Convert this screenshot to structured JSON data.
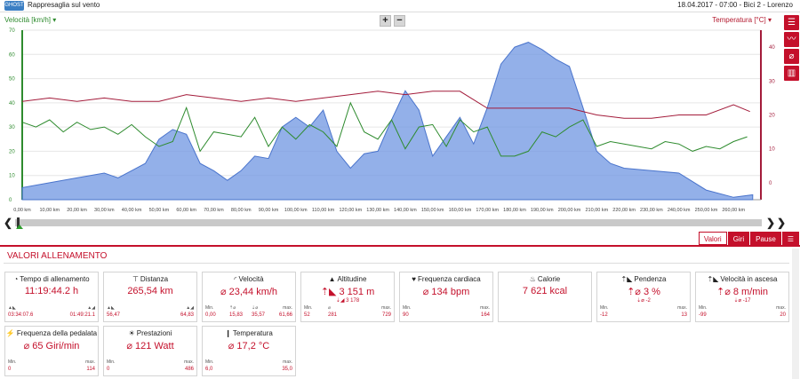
{
  "header": {
    "logo_text": "GHOST",
    "title": "Rappresaglia sul vento",
    "session": "18.04.2017  -  07:00  -  Bici 2  -  Lorenzo"
  },
  "chart": {
    "left_axis_label": "Velocità [km/h]",
    "right_axis_label": "Temperatura [°C]",
    "zoom_in": "+",
    "zoom_out": "−"
  },
  "chart_data": {
    "type": "line",
    "x_label": "km",
    "x_ticks": [
      "0,00 km",
      "10,00 km",
      "20,00 km",
      "30,00 km",
      "40,00 km",
      "50,00 km",
      "60,00 km",
      "70,00 km",
      "80,00 km",
      "90,00 km",
      "100,00 km",
      "110,00 km",
      "120,00 km",
      "130,00 km",
      "140,00 km",
      "150,00 km",
      "160,00 km",
      "170,00 km",
      "180,00 km",
      "190,00 km",
      "200,00 km",
      "210,00 km",
      "220,00 km",
      "230,00 km",
      "240,00 km",
      "250,00 km",
      "260,00 km"
    ],
    "x_range": [
      0,
      270
    ],
    "y_left_ticks": [
      0,
      10,
      20,
      30,
      40,
      50,
      60,
      70
    ],
    "y_left_range": [
      0,
      70
    ],
    "y_right_ticks": [
      0,
      10,
      20,
      30,
      40
    ],
    "y_right_range": [
      -5,
      45
    ],
    "series": [
      {
        "name": "Altitudine",
        "color": "#6f96e2",
        "axis": "left",
        "x": [
          0,
          10,
          20,
          30,
          35,
          40,
          45,
          50,
          55,
          60,
          65,
          70,
          75,
          80,
          85,
          90,
          95,
          100,
          105,
          110,
          115,
          120,
          125,
          130,
          135,
          140,
          145,
          150,
          155,
          160,
          165,
          170,
          175,
          180,
          185,
          190,
          195,
          200,
          205,
          210,
          215,
          220,
          230,
          240,
          250,
          260,
          267
        ],
        "values": [
          5,
          7,
          9,
          11,
          9,
          12,
          15,
          25,
          29,
          27,
          15,
          12,
          8,
          12,
          18,
          17,
          30,
          34,
          30,
          37,
          20,
          13,
          19,
          20,
          33,
          45,
          37,
          18,
          26,
          34,
          23,
          38,
          56,
          63,
          65,
          62,
          58,
          55,
          38,
          20,
          15,
          13,
          12,
          11,
          4,
          1,
          2
        ]
      },
      {
        "name": "Velocità",
        "color": "#2e8b2e",
        "axis": "left",
        "x": [
          0,
          5,
          10,
          15,
          20,
          25,
          30,
          35,
          40,
          45,
          50,
          55,
          60,
          65,
          70,
          75,
          80,
          85,
          90,
          95,
          100,
          105,
          110,
          115,
          120,
          125,
          130,
          135,
          140,
          145,
          150,
          155,
          160,
          165,
          170,
          175,
          180,
          185,
          190,
          195,
          200,
          205,
          210,
          215,
          220,
          225,
          230,
          235,
          240,
          245,
          250,
          255,
          260,
          265
        ],
        "values": [
          32,
          30,
          33,
          28,
          32,
          29,
          30,
          27,
          31,
          26,
          22,
          24,
          38,
          20,
          28,
          27,
          26,
          34,
          22,
          30,
          25,
          31,
          28,
          22,
          40,
          28,
          25,
          33,
          21,
          30,
          31,
          22,
          33,
          28,
          30,
          18,
          18,
          20,
          28,
          26,
          30,
          33,
          22,
          24,
          23,
          22,
          21,
          24,
          23,
          20,
          22,
          21,
          24,
          26
        ]
      },
      {
        "name": "Temperatura",
        "color": "#a31b3a",
        "axis": "right",
        "x": [
          0,
          10,
          20,
          30,
          40,
          50,
          60,
          70,
          80,
          90,
          100,
          110,
          120,
          130,
          140,
          150,
          160,
          170,
          180,
          190,
          200,
          210,
          220,
          230,
          240,
          250,
          260,
          266
        ],
        "values": [
          24,
          25,
          24,
          25,
          24,
          24,
          26,
          25,
          24,
          25,
          24,
          25,
          26,
          27,
          26,
          27,
          27,
          22,
          22,
          22,
          22,
          20,
          19,
          19,
          20,
          20,
          23,
          21
        ]
      }
    ]
  },
  "tabs": [
    {
      "label": "Valori"
    },
    {
      "label": "Giri"
    },
    {
      "label": "Pause"
    }
  ],
  "panel": {
    "title": "Valori allenamento"
  },
  "stats": [
    {
      "title": "Tempo di allenamento",
      "icon": "◔",
      "main": "11:19:44.2 h",
      "sub": "",
      "r1": [
        "▲◣",
        "",
        "",
        "▲◢"
      ],
      "r2": [
        "03:34:07.6",
        "",
        "",
        "01:49:21.1"
      ]
    },
    {
      "title": "Distanza",
      "icon": "⊤",
      "main": "265,54 km",
      "sub": "",
      "r1": [
        "▲◣",
        "",
        "",
        "▲◢"
      ],
      "r2": [
        "56,47",
        "",
        "",
        "64,83"
      ]
    },
    {
      "title": "Velocità",
      "icon": "◜",
      "main": "⌀ 23,44 km/h",
      "sub": "",
      "r1": [
        "Min.",
        "⇡⌀",
        "⇣⌀",
        "max."
      ],
      "r2": [
        "0,00",
        "15,83",
        "35,57",
        "61,66"
      ]
    },
    {
      "title": "Altitudine",
      "icon": "▲",
      "main": "⇡◣ 3 151 m",
      "sub": "⇣◢ 3 178",
      "r1": [
        "Min.",
        "⌀",
        "",
        "max."
      ],
      "r2": [
        "52",
        "281",
        "",
        "729"
      ]
    },
    {
      "title": "Frequenza cardiaca",
      "icon": "♥",
      "main": "⌀ 134 bpm",
      "sub": "",
      "r1": [
        "Min.",
        "",
        "",
        "max."
      ],
      "r2": [
        "90",
        "",
        "",
        "164"
      ]
    },
    {
      "title": "Calorie",
      "icon": "♨",
      "main": "7 621 kcal",
      "sub": "",
      "r1": [
        "",
        "",
        "",
        ""
      ],
      "r2": [
        "",
        "",
        "",
        ""
      ]
    },
    {
      "title": "Pendenza",
      "icon": "⇡◣",
      "main": "⇡⌀ 3 %",
      "sub": "⇣⌀ -2",
      "r1": [
        "Min.",
        "",
        "",
        "max."
      ],
      "r2": [
        "-12",
        "",
        "",
        "13"
      ]
    },
    {
      "title": "Velocità in ascesa",
      "icon": "⇡◣",
      "main": "⇡⌀ 8 m/min",
      "sub": "⇣⌀ -17",
      "r1": [
        "Min.",
        "",
        "",
        "max."
      ],
      "r2": [
        "-99",
        "",
        "",
        "20"
      ]
    },
    {
      "title": "Frequenza della pedalata",
      "icon": "⚡",
      "main": "⌀ 65 Giri/min",
      "sub": "",
      "r1": [
        "Min.",
        "",
        "",
        "max."
      ],
      "r2": [
        "0",
        "",
        "",
        "114"
      ]
    },
    {
      "title": "Prestazioni",
      "icon": "☀",
      "main": "⌀ 121 Watt",
      "sub": "",
      "r1": [
        "Min.",
        "",
        "",
        "max."
      ],
      "r2": [
        "0",
        "",
        "",
        "486"
      ]
    },
    {
      "title": "Temperatura",
      "icon": "❙",
      "main": "⌀ 17,2 °C",
      "sub": "",
      "r1": [
        "Min.",
        "",
        "",
        "max."
      ],
      "r2": [
        "6,0",
        "",
        "",
        "35,0"
      ]
    }
  ]
}
